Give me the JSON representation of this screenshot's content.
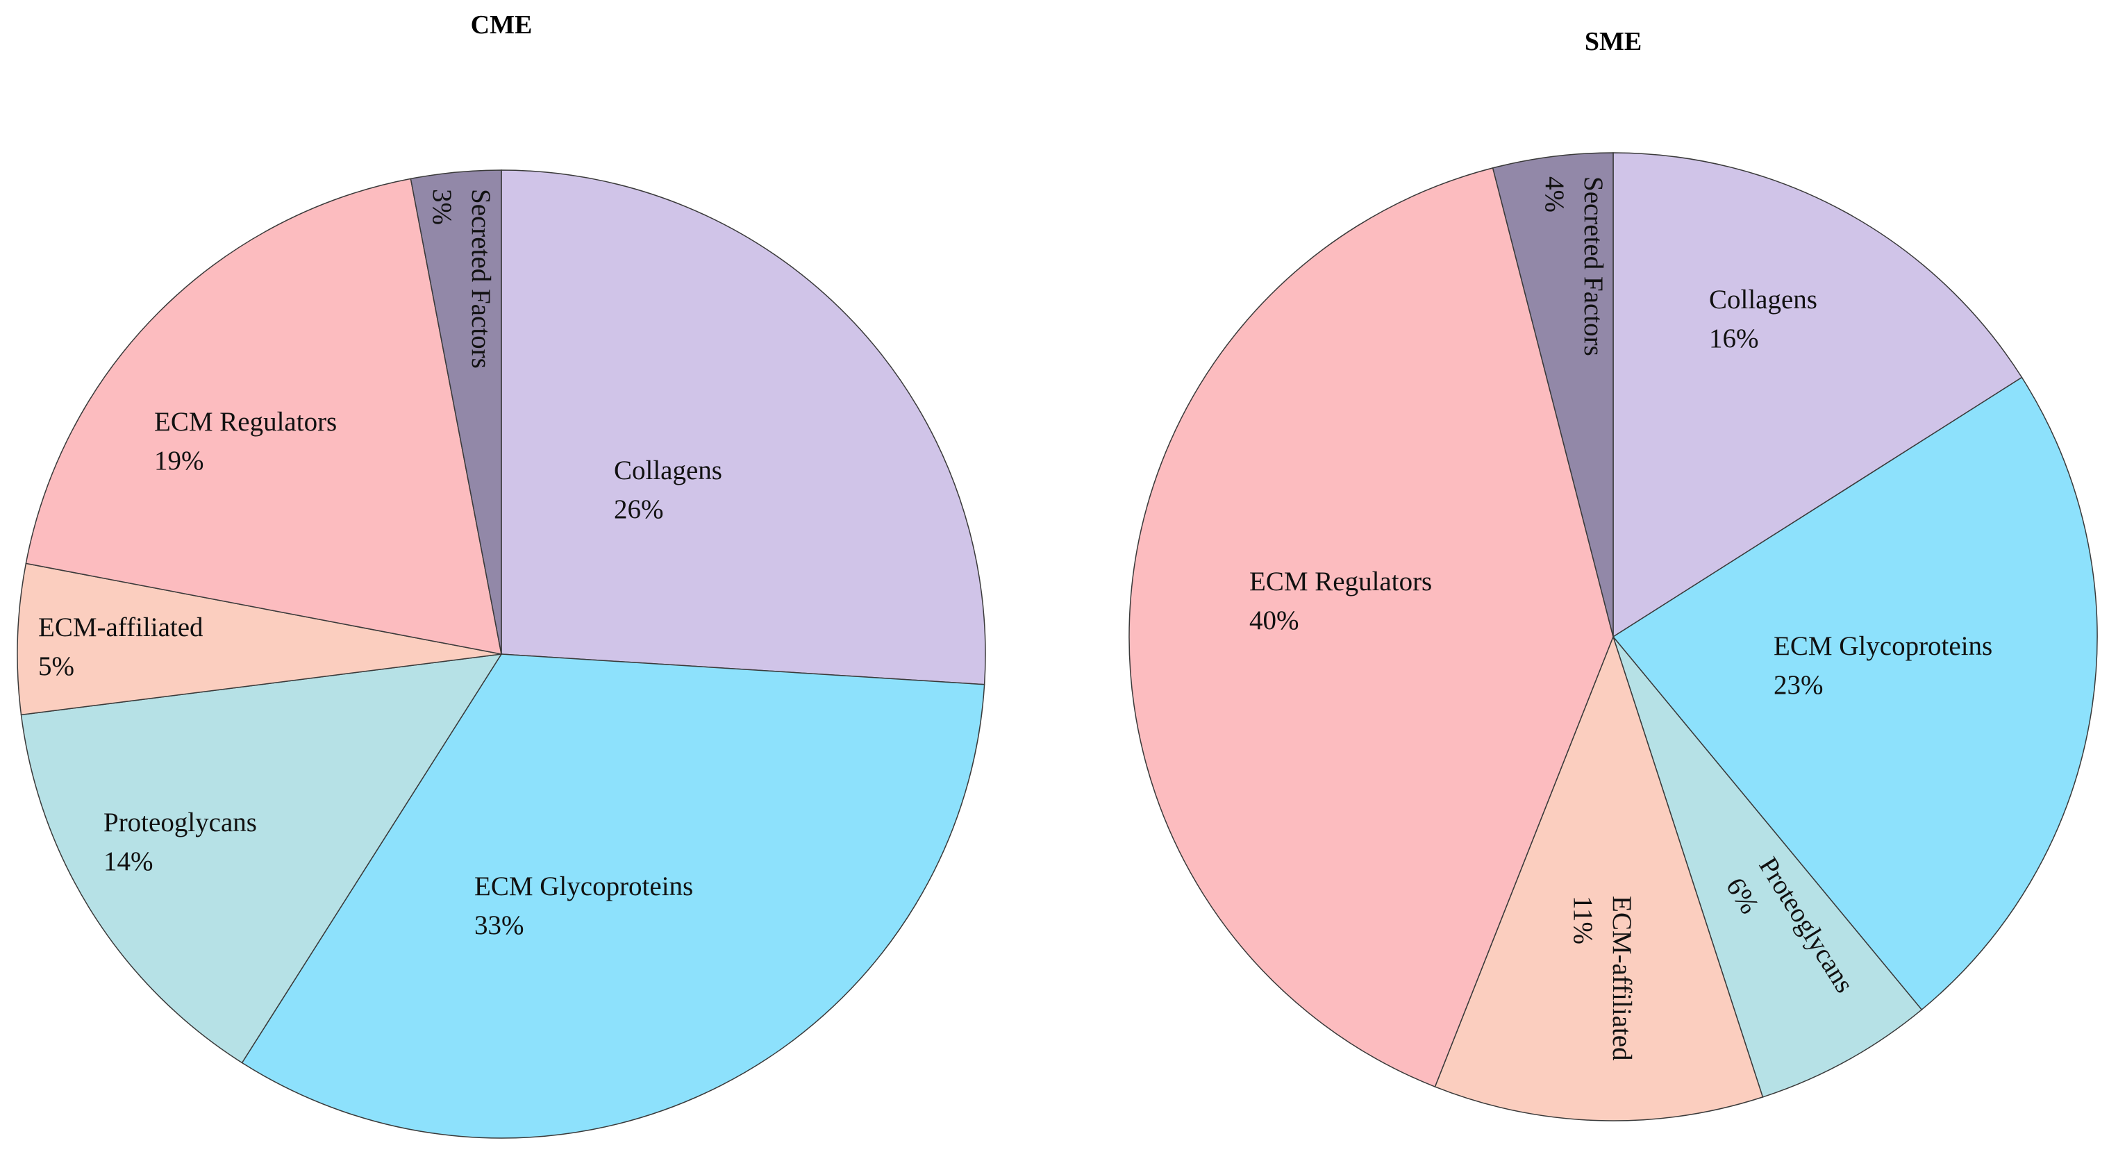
{
  "chart_data": [
    {
      "type": "pie",
      "title": "CME",
      "slices": [
        {
          "name": "Collagens",
          "value": 26,
          "value_label": "26%",
          "color": "#D0C4E8"
        },
        {
          "name": "ECM Glycoproteins",
          "value": 33,
          "value_label": "33%",
          "color": "#8DE1FC"
        },
        {
          "name": "Proteoglycans",
          "value": 14,
          "value_label": "14%",
          "color": "#B6E1E6"
        },
        {
          "name": "ECM-affiliated",
          "value": 5,
          "value_label": "5%",
          "color": "#FBCEBF"
        },
        {
          "name": "ECM Regulators",
          "value": 19,
          "value_label": "19%",
          "color": "#FCBCBF"
        },
        {
          "name": "Secreted Factors",
          "value": 3,
          "value_label": "3%",
          "color": "#9288A8"
        }
      ]
    },
    {
      "type": "pie",
      "title": "SME",
      "slices": [
        {
          "name": "Collagens",
          "value": 16,
          "value_label": "16%",
          "color": "#D0C4E8"
        },
        {
          "name": "ECM Glycoproteins",
          "value": 23,
          "value_label": "23%",
          "color": "#8DE1FC"
        },
        {
          "name": "Proteoglycans",
          "value": 6,
          "value_label": "6%",
          "color": "#B6E1E6"
        },
        {
          "name": "ECM-affiliated",
          "value": 11,
          "value_label": "11%",
          "color": "#FBCEBF"
        },
        {
          "name": "ECM Regulators",
          "value": 40,
          "value_label": "40%",
          "color": "#FCBCBF"
        },
        {
          "name": "Secreted Factors",
          "value": 4,
          "value_label": "4%",
          "color": "#9288A8"
        }
      ]
    }
  ]
}
